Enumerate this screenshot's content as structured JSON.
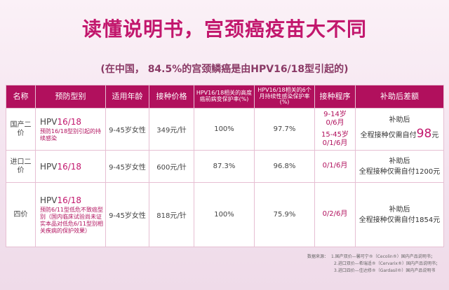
{
  "title": "读懂说明书，宫颈癌疫苗大不同",
  "subtitle": "(在中国， 84.5%的宫颈鳞癌是由HPV16/18型引起的)",
  "table": {
    "headers": [
      "名称",
      "预防型别",
      "适用年龄",
      "接种价格",
      "HPV16/18相关的高度癌前病变保护率(%)",
      "HPV16/18相关的6个月持续性感染保护率(%)",
      "接种程序",
      "补助后差额"
    ],
    "rows": [
      {
        "name": "国产二价",
        "hpv_prefix": "HPV",
        "hpv_num": "16/18",
        "note": "预防16/18型别引起的持续感染",
        "age": "9-45岁女性",
        "price": "349元/针",
        "cin_rate": "100%",
        "persist_rate": "97.7%",
        "schedule": [
          "9-14岁",
          "0/6月",
          "15-45岁",
          "0/1/6月"
        ],
        "subsidy_line1": "补助后",
        "subsidy_line2": "全程接种仅需自付",
        "subsidy_amount": "98",
        "subsidy_unit": "元"
      },
      {
        "name": "进口二价",
        "hpv_prefix": "HPV",
        "hpv_num": "16/18",
        "note": "",
        "age": "9-45岁女性",
        "price": "600元/针",
        "cin_rate": "87.3%",
        "persist_rate": "96.8%",
        "schedule": [
          "0/1/6月"
        ],
        "subsidy_line1": "补助后",
        "subsidy_line2": "全程接种仅需自付1200元"
      },
      {
        "name": "四价",
        "hpv_prefix": "HPV",
        "hpv_num": "16/18",
        "note": "预防6/11型低危不致癌型别（国内临床试验尚未证实本品对低危6/11型别相关疾病的保护效果）",
        "age": "9-45岁女性",
        "price": "818元/针",
        "cin_rate": "100%",
        "persist_rate": "75.9%",
        "schedule": [
          "0/2/6月"
        ],
        "subsidy_line1": "补助后",
        "subsidy_line2": "全程接种仅需自付1854元"
      }
    ]
  },
  "sources": {
    "label": "数据来源：",
    "items": [
      "1.国产双价—馨可宁®（Cecolin®）国内产品说明书；",
      "2.进口双价—希瑞适®（Cervarix®）国内产品说明书；",
      "3.进口四价—佳达修®（Gardasil®）国内产品说明书"
    ]
  },
  "colors": {
    "accent": "#c2176d",
    "header_bg": "#b1105d",
    "background": "#f7e8f1"
  }
}
